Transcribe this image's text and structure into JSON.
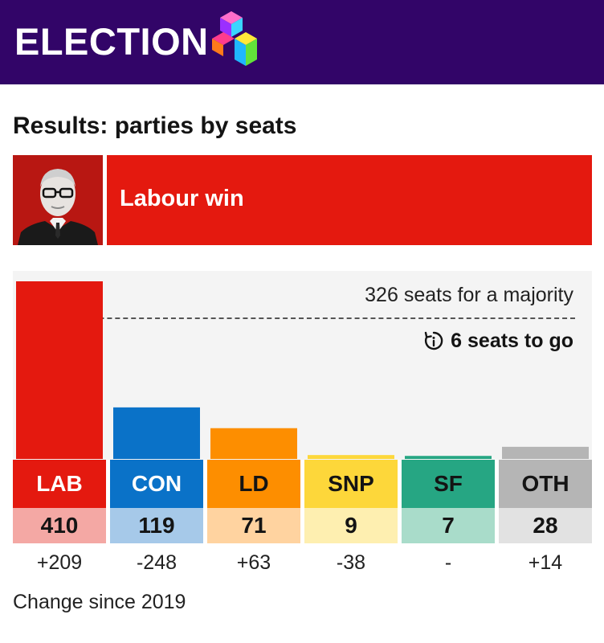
{
  "header": {
    "brand": "ELECTION",
    "colors": {
      "background": "#320568"
    }
  },
  "title": "Results: parties by seats",
  "banner": {
    "text": "Labour win",
    "color": "#e4190f",
    "photo": "party-leader-portrait"
  },
  "chart_data": {
    "type": "bar",
    "categories": [
      "LAB",
      "CON",
      "LD",
      "SNP",
      "SF",
      "OTH"
    ],
    "values": [
      410,
      119,
      71,
      9,
      7,
      28
    ],
    "seat_labels": [
      "410",
      "119",
      "71",
      "9",
      "7",
      "28"
    ],
    "changes": [
      "+209",
      "-248",
      "+63",
      "-38",
      "-",
      "+14"
    ],
    "colors": [
      "#e4190f",
      "#0a72c8",
      "#fd8e00",
      "#fdd73a",
      "#26a683",
      "#b5b5b5"
    ],
    "label_text_colors": [
      "#ffffff",
      "#ffffff",
      "#141414",
      "#141414",
      "#141414",
      "#141414"
    ],
    "seat_bg_colors": [
      "#f4a8a4",
      "#a6c9e9",
      "#ffd3a0",
      "#feefb0",
      "#a9dcca",
      "#e2e2e2"
    ],
    "majority": {
      "value": 326,
      "label": "326 seats for a majority",
      "to_go_label": "6 seats to go"
    },
    "ylim": [
      0,
      476
    ],
    "footnote": "Change since 2019"
  }
}
